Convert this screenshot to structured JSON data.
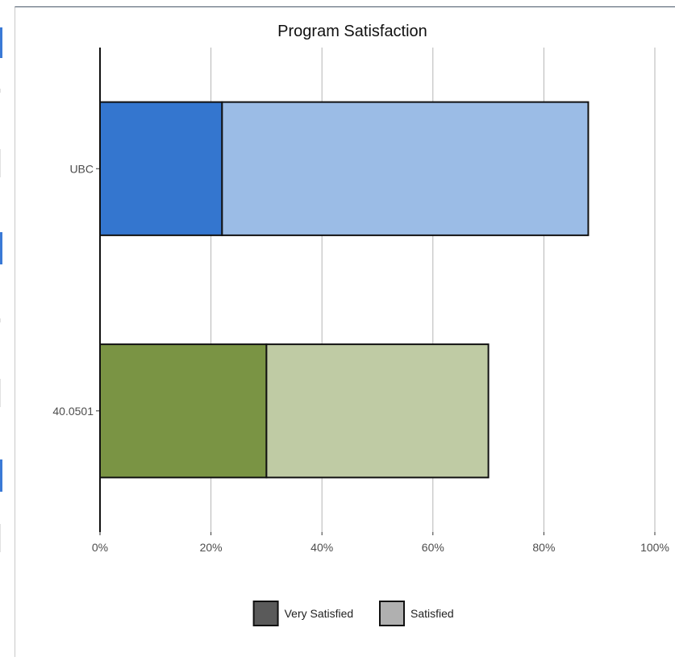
{
  "chart_data": {
    "type": "bar",
    "orientation": "horizontal",
    "stacked": true,
    "title": "Program Satisfaction",
    "xlabel": "",
    "ylabel": "",
    "categories": [
      "UBC",
      "40.0501"
    ],
    "series": [
      {
        "name": "Very Satisfied",
        "values": [
          22,
          30
        ]
      },
      {
        "name": "Satisfied",
        "values": [
          66,
          40
        ]
      }
    ],
    "bar_colors": [
      [
        "#3476cf",
        "#9bbce6"
      ],
      [
        "#7a9444",
        "#bfcba4"
      ]
    ],
    "legend_colors": [
      "#5a5a5a",
      "#b0b0b0"
    ],
    "xlim": [
      0,
      100
    ],
    "x_ticks": [
      "0%",
      "20%",
      "40%",
      "60%",
      "80%",
      "100%"
    ],
    "grid": "vertical",
    "legend_position": "bottom"
  }
}
